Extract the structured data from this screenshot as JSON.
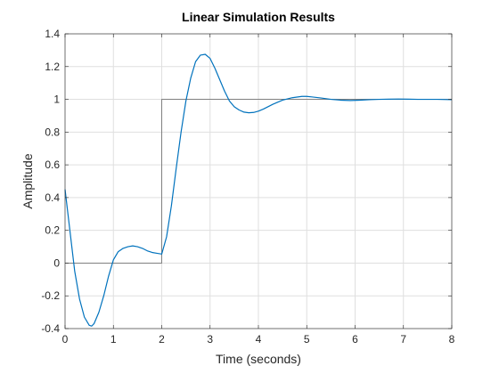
{
  "chart_data": {
    "type": "line",
    "title": "Linear Simulation Results",
    "xlabel": "Time (seconds)",
    "ylabel": "Amplitude",
    "xlim": [
      0,
      8
    ],
    "ylim": [
      -0.4,
      1.4
    ],
    "xticks": [
      "0",
      "1",
      "2",
      "3",
      "4",
      "5",
      "6",
      "7",
      "8"
    ],
    "yticks": [
      "-0.4",
      "-0.2",
      "0",
      "0.2",
      "0.4",
      "0.6",
      "0.8",
      "1",
      "1.2",
      "1.4"
    ],
    "grid": true,
    "series": [
      {
        "role": "input",
        "color": "#808080",
        "x": [
          0,
          2,
          2,
          8
        ],
        "y": [
          0,
          0,
          1,
          1
        ]
      },
      {
        "role": "response",
        "color": "#0072BD",
        "x": [
          0,
          0.1,
          0.2,
          0.3,
          0.4,
          0.5,
          0.55,
          0.6,
          0.7,
          0.8,
          0.9,
          1.0,
          1.1,
          1.2,
          1.3,
          1.4,
          1.5,
          1.6,
          1.7,
          1.8,
          1.9,
          2.0,
          2.1,
          2.2,
          2.3,
          2.4,
          2.5,
          2.6,
          2.7,
          2.8,
          2.9,
          3.0,
          3.1,
          3.2,
          3.3,
          3.4,
          3.5,
          3.6,
          3.7,
          3.8,
          3.9,
          4.0,
          4.1,
          4.2,
          4.3,
          4.5,
          4.7,
          4.9,
          5.0,
          5.1,
          5.3,
          5.5,
          5.7,
          5.9,
          6.1,
          6.3,
          6.5,
          6.7,
          6.9,
          7.1,
          7.3,
          7.5,
          7.7,
          8.0
        ],
        "y": [
          0.45,
          0.2,
          -0.05,
          -0.22,
          -0.33,
          -0.38,
          -0.385,
          -0.37,
          -0.3,
          -0.2,
          -0.08,
          0.02,
          0.07,
          0.09,
          0.1,
          0.105,
          0.1,
          0.09,
          0.075,
          0.065,
          0.06,
          0.055,
          0.16,
          0.35,
          0.58,
          0.8,
          0.99,
          1.13,
          1.23,
          1.27,
          1.275,
          1.25,
          1.19,
          1.12,
          1.05,
          0.99,
          0.955,
          0.935,
          0.922,
          0.918,
          0.92,
          0.928,
          0.94,
          0.955,
          0.97,
          0.995,
          1.01,
          1.018,
          1.018,
          1.015,
          1.008,
          1.0,
          0.995,
          0.993,
          0.995,
          0.998,
          1.0,
          1.001,
          1.002,
          1.001,
          1.0,
          1.0,
          1.0,
          0.998
        ]
      }
    ]
  }
}
